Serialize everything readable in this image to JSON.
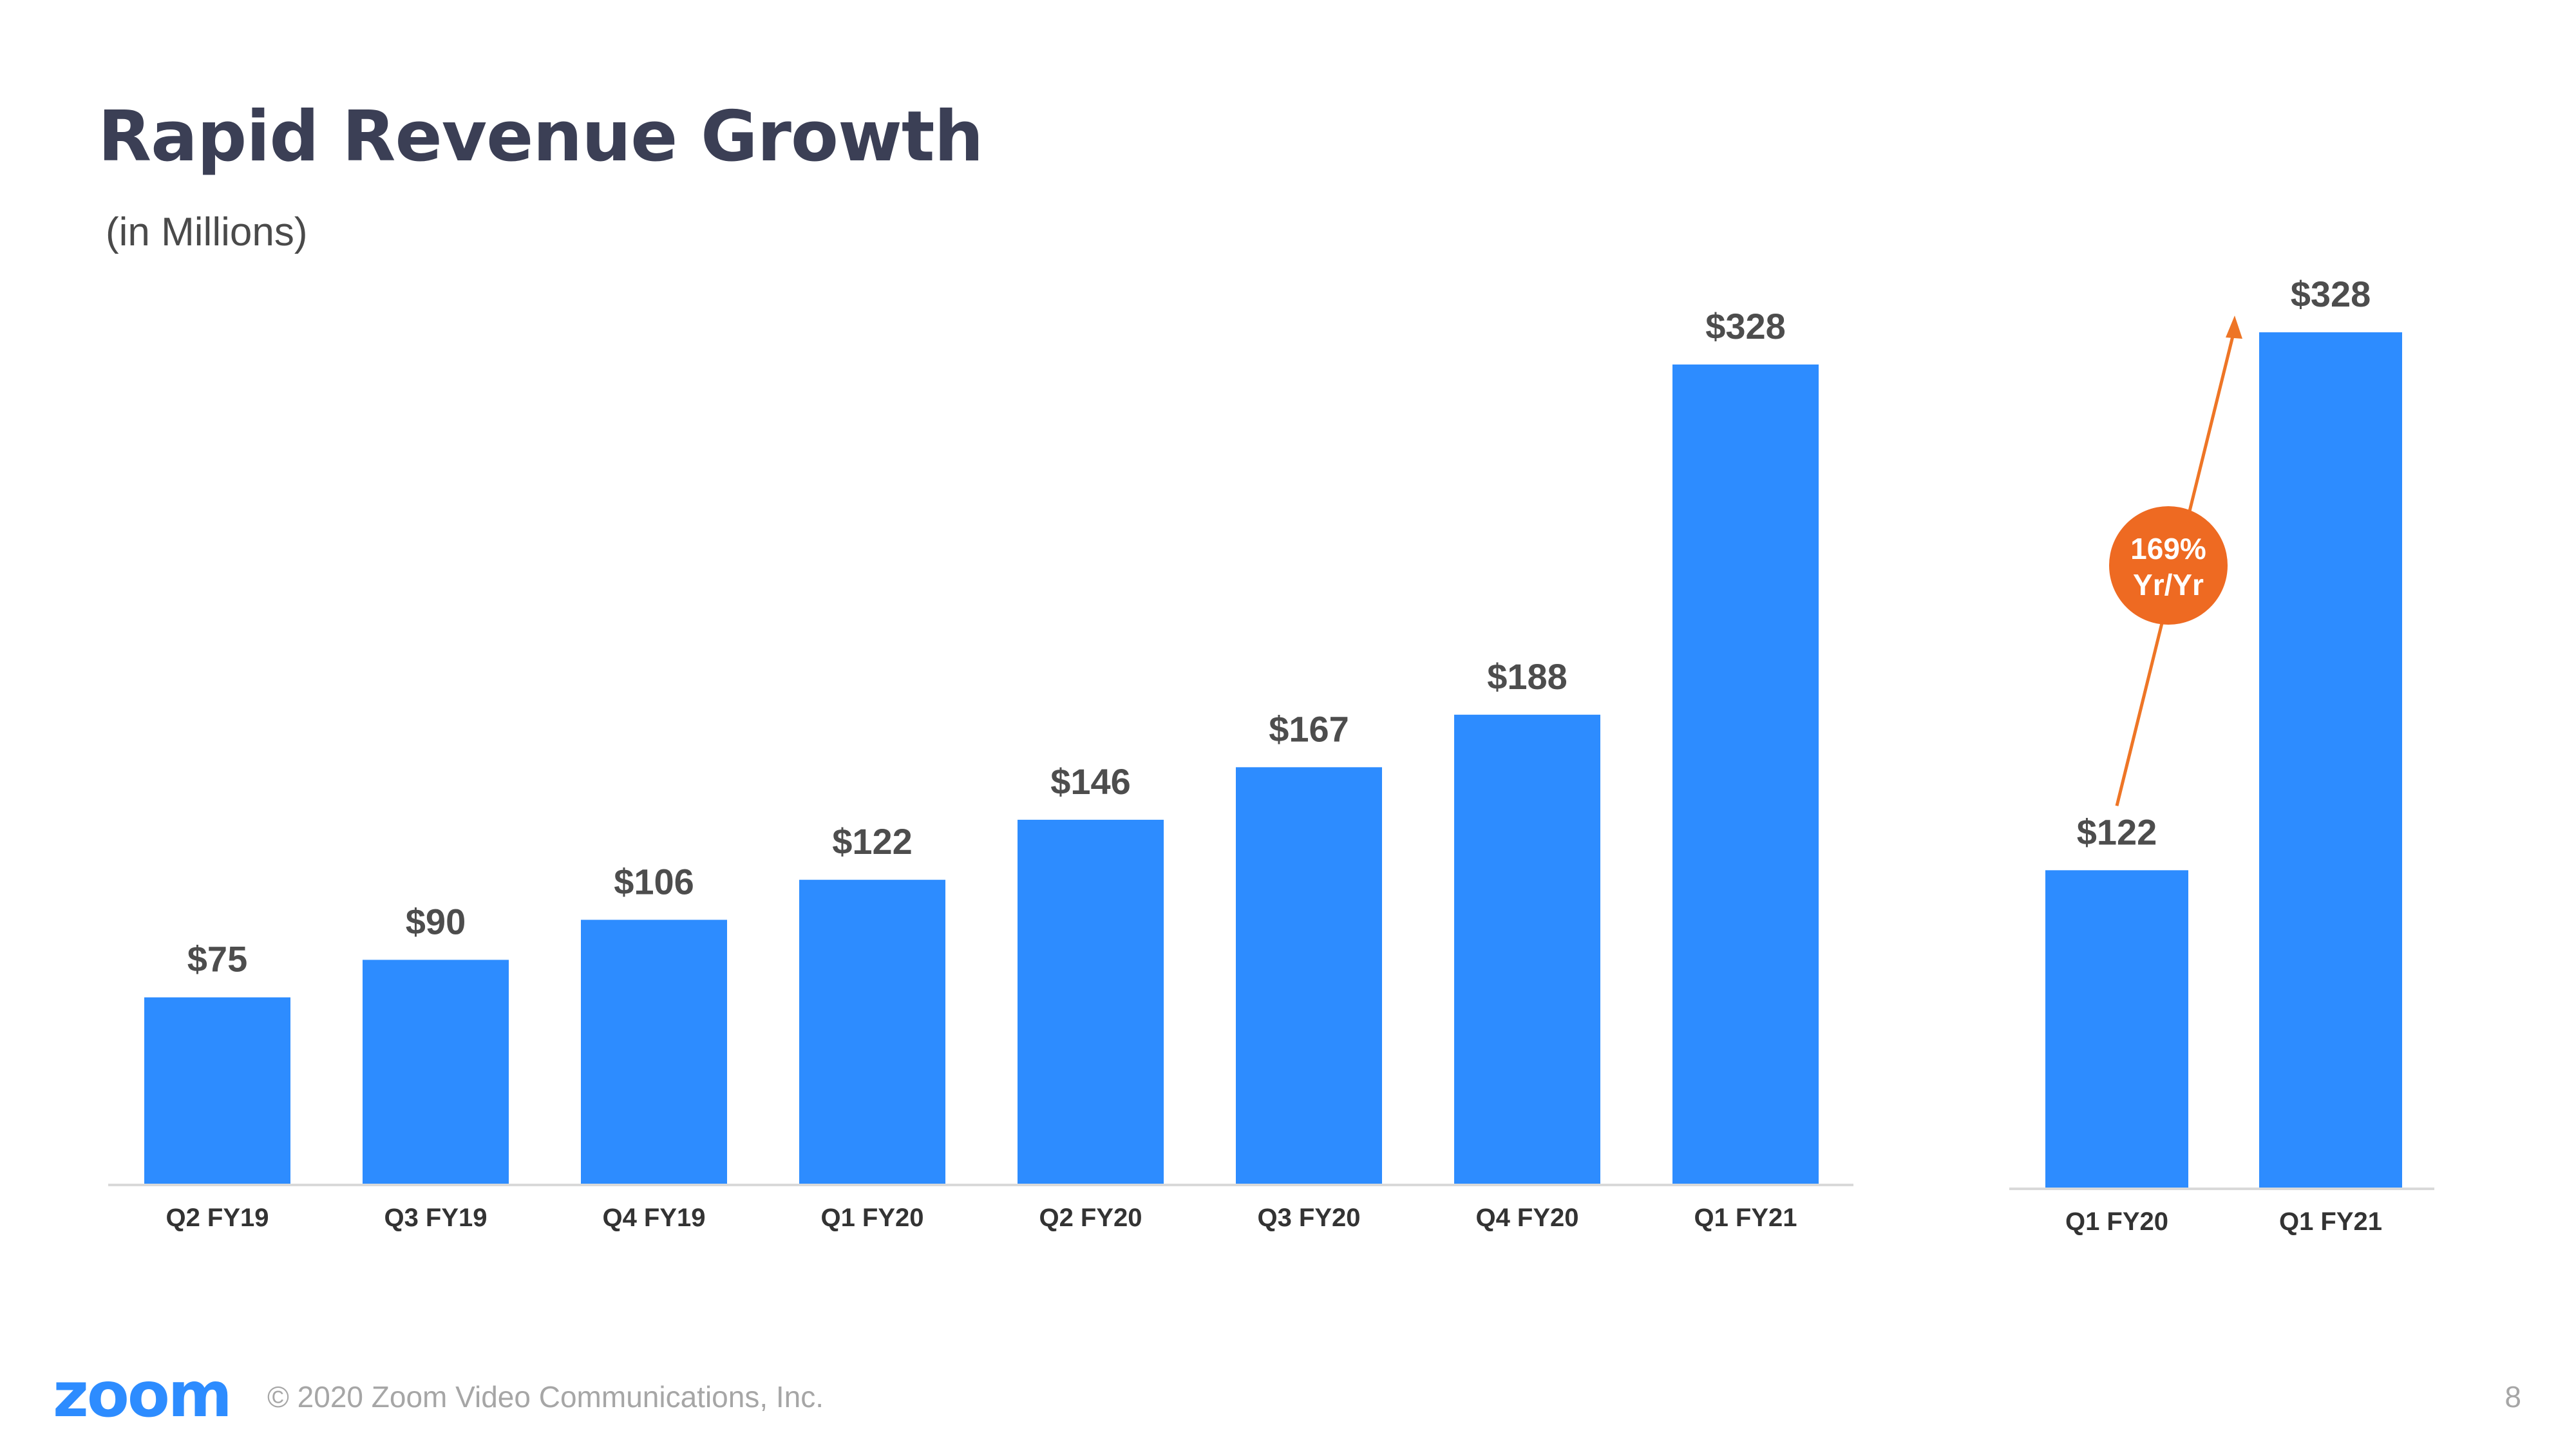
{
  "slide": {
    "title": "Rapid Revenue Growth",
    "subtitle": "(in Millions)",
    "footer": {
      "logo_text": "zoom",
      "copyright": "© 2020 Zoom Video Communications, Inc.",
      "page_number": "8"
    }
  },
  "colors": {
    "bar": "#2d8cff",
    "arrow": "#ee7526",
    "badge": "#ee6a22",
    "title": "#3b3f55"
  },
  "chart_data": [
    {
      "type": "bar",
      "title": "",
      "xlabel": "",
      "ylabel": "",
      "ylim": [
        0,
        328
      ],
      "grid": false,
      "categories": [
        "Q2 FY19",
        "Q3 FY19",
        "Q4 FY19",
        "Q1 FY20",
        "Q2 FY20",
        "Q3 FY20",
        "Q4 FY20",
        "Q1 FY21"
      ],
      "values": [
        75,
        90,
        106,
        122,
        146,
        167,
        188,
        328
      ],
      "data_labels": [
        "$75",
        "$90",
        "$106",
        "$122",
        "$146",
        "$167",
        "$188",
        "$328"
      ]
    },
    {
      "type": "bar",
      "title": "",
      "xlabel": "",
      "ylabel": "",
      "ylim": [
        0,
        328
      ],
      "grid": false,
      "categories": [
        "Q1 FY20",
        "Q1 FY21"
      ],
      "values": [
        122,
        328
      ],
      "data_labels": [
        "$122",
        "$328"
      ],
      "annotation": {
        "line1": "169%",
        "line2": "Yr/Yr"
      }
    }
  ]
}
